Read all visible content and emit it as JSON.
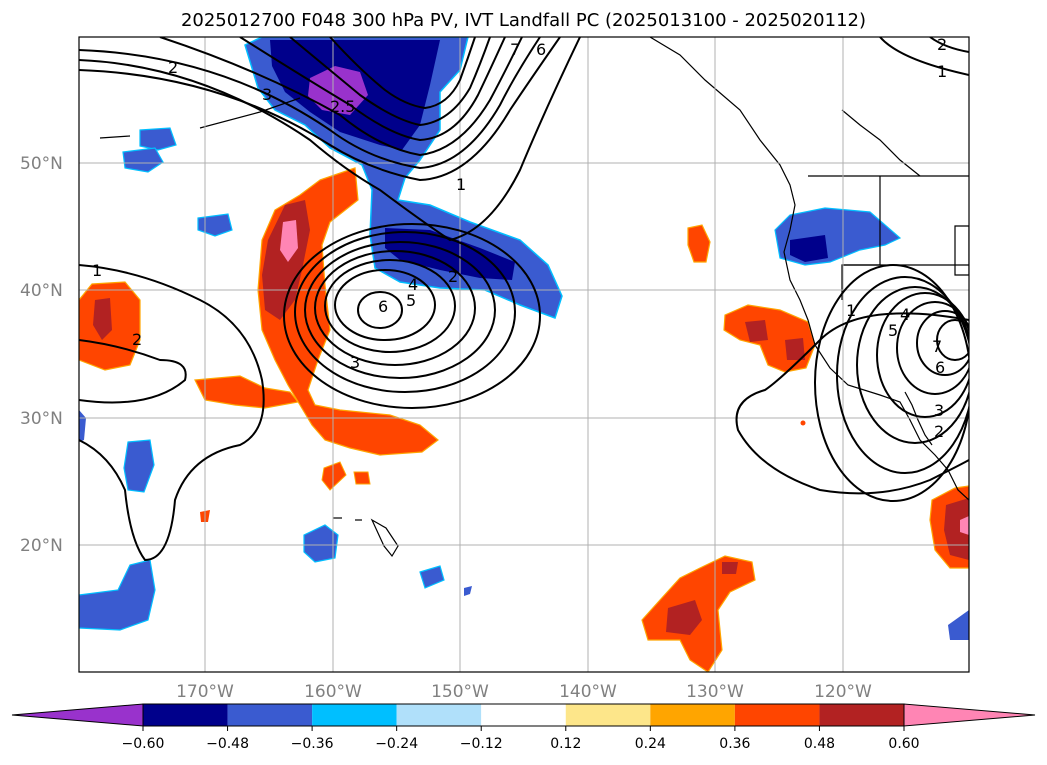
{
  "title": "2025012700 F048 300 hPa PV, IVT Landfall PC (2025013100 - 2025020112)",
  "lat_labels": [
    "50°N",
    "40°N",
    "30°N",
    "20°N"
  ],
  "lon_labels": [
    "170°W",
    "160°W",
    "150°W",
    "140°W",
    "130°W",
    "120°W"
  ],
  "colorbar": {
    "tick_labels": [
      "−0.60",
      "−0.48",
      "−0.36",
      "−0.24",
      "−0.12",
      "0.12",
      "0.24",
      "0.36",
      "0.48",
      "0.60"
    ],
    "colors": [
      "#9932cc",
      "#00008b",
      "#3a5bd0",
      "#00bfff",
      "#b0e0fa",
      "#ffffff",
      "#fde68a",
      "#ffa500",
      "#ff4500",
      "#b22222",
      "#ff85b4"
    ]
  },
  "contour_labels": [
    "2",
    "3",
    "2.5",
    "7",
    "6",
    "1",
    "2",
    "1",
    "1",
    "2",
    "6",
    "5",
    "4",
    "2",
    "3",
    "1",
    "5",
    "4",
    "7",
    "6",
    "3",
    "2"
  ]
}
